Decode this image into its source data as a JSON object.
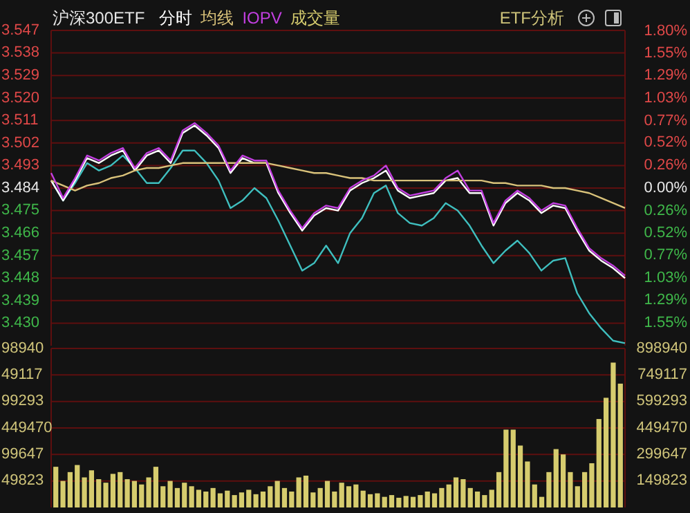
{
  "chart_data": [
    {
      "type": "line",
      "title": "沪深300ETF",
      "annotations": [
        "ETF分析"
      ],
      "categories": [
        null,
        null,
        null,
        null,
        null,
        null,
        null,
        null,
        null,
        null,
        null,
        null,
        null,
        null,
        null,
        null,
        null,
        null,
        null,
        null,
        null,
        null,
        null,
        null,
        null,
        null,
        null,
        null,
        null,
        null,
        null,
        null,
        null,
        null,
        null,
        null,
        null,
        null,
        null,
        null,
        null,
        null,
        null,
        null,
        null,
        null,
        null,
        null,
        null
      ],
      "ylim": [
        3.421,
        3.547
      ],
      "yticks": [
        3.547,
        3.538,
        3.529,
        {
          "value": 3.52,
          "label": "3.520"
        },
        3.511,
        3.502,
        3.493,
        3.484,
        3.475,
        3.466,
        3.457,
        3.448,
        3.439,
        {
          "value": 3.43,
          "label": "3.430"
        }
      ],
      "y2lim": [
        -1.81,
        1.81
      ],
      "y2ticks": [
        {
          "value": 1.8,
          "label": "1.80%"
        },
        {
          "value": 1.55,
          "label": "1.55%"
        },
        {
          "value": 1.29,
          "label": "1.29%"
        },
        {
          "value": 1.03,
          "label": "1.03%"
        },
        {
          "value": 0.77,
          "label": "0.77%"
        },
        {
          "value": 0.52,
          "label": "0.52%"
        },
        {
          "value": 0.26,
          "label": "0.26%"
        },
        {
          "value": 0,
          "label": "0.00%"
        },
        {
          "value": -0.26,
          "label": "0.26%"
        },
        {
          "value": -0.52,
          "label": "0.52%"
        },
        {
          "value": -0.77,
          "label": "0.77%"
        },
        {
          "value": -1.03,
          "label": "1.03%"
        },
        {
          "value": -1.29,
          "label": "1.29%"
        },
        {
          "value": -1.55,
          "label": "1.55%"
        }
      ],
      "grid": "y",
      "series": [
        {
          "color": "#3fbfbf",
          "values": [
            3.487,
            3.479,
            3.486,
            3.494,
            3.491,
            3.493,
            3.497,
            3.492,
            3.486,
            3.486,
            3.492,
            3.499,
            3.499,
            3.494,
            3.487,
            3.476,
            3.479,
            3.484,
            3.48,
            3.471,
            3.461,
            3.451,
            3.454,
            3.461,
            3.454,
            3.466,
            3.472,
            3.482,
            3.485,
            3.474,
            3.47,
            3.469,
            3.472,
            3.478,
            3.475,
            3.469,
            3.461,
            3.454,
            3.459,
            3.463,
            3.458,
            3.451,
            3.455,
            3.456,
            3.442,
            3.434,
            3.428,
            3.423,
            3.422
          ]
        },
        {
          "name": "分时",
          "color": "#ffffff",
          "values": [
            3.487,
            3.479,
            3.487,
            3.496,
            3.494,
            3.497,
            3.499,
            3.491,
            3.497,
            3.499,
            3.494,
            3.506,
            3.509,
            3.505,
            3.5,
            3.49,
            3.496,
            3.494,
            3.494,
            3.482,
            3.474,
            3.467,
            3.473,
            3.476,
            3.475,
            3.483,
            3.486,
            3.488,
            3.491,
            3.483,
            3.48,
            3.481,
            3.482,
            3.487,
            3.488,
            3.482,
            3.482,
            3.469,
            3.478,
            3.482,
            3.479,
            3.474,
            3.477,
            3.476,
            3.467,
            3.459,
            3.455,
            3.452,
            3.448
          ]
        },
        {
          "name": "均线",
          "color": "#d9c27a",
          "values": [
            3.487,
            3.485,
            3.483,
            3.485,
            3.486,
            3.488,
            3.489,
            3.491,
            3.492,
            3.492,
            3.493,
            3.494,
            3.494,
            3.494,
            3.494,
            3.494,
            3.494,
            3.494,
            3.494,
            3.493,
            3.492,
            3.491,
            3.49,
            3.49,
            3.489,
            3.488,
            3.488,
            3.487,
            3.487,
            3.487,
            3.487,
            3.487,
            3.487,
            3.487,
            3.487,
            3.487,
            3.487,
            3.486,
            3.486,
            3.485,
            3.485,
            3.485,
            3.484,
            3.484,
            3.483,
            3.482,
            3.48,
            3.478,
            3.476
          ]
        },
        {
          "name": "IOPV",
          "color": "#c23fe0",
          "values": [
            3.49,
            3.48,
            3.488,
            3.497,
            3.495,
            3.498,
            3.5,
            3.492,
            3.498,
            3.5,
            3.495,
            3.507,
            3.51,
            3.506,
            3.501,
            3.491,
            3.497,
            3.495,
            3.495,
            3.483,
            3.475,
            3.468,
            3.474,
            3.477,
            3.476,
            3.484,
            3.487,
            3.489,
            3.493,
            3.484,
            3.481,
            3.482,
            3.483,
            3.488,
            3.491,
            3.483,
            3.483,
            3.47,
            3.479,
            3.483,
            3.48,
            3.475,
            3.478,
            3.477,
            3.468,
            3.46,
            3.456,
            3.453,
            3.449
          ]
        }
      ]
    },
    {
      "type": "bar",
      "grid": "y",
      "annotations": [
        "98940",
        "49117",
        "99293",
        "449470",
        "99647",
        "49823"
      ],
      "categories": [
        null,
        null,
        null,
        null,
        null,
        null,
        null,
        null,
        null,
        null,
        null,
        null,
        null,
        null,
        null,
        null,
        null,
        null,
        null,
        null,
        null,
        null,
        null,
        null,
        null,
        null,
        null,
        null,
        null,
        null,
        null,
        null,
        null,
        null,
        null,
        null,
        null,
        null,
        null,
        null,
        null,
        null,
        null,
        null,
        null,
        null,
        null,
        null,
        null,
        null,
        null,
        null,
        null,
        null,
        null,
        null,
        null,
        null,
        null,
        null,
        null,
        null,
        null,
        null,
        null,
        null,
        null,
        null,
        null,
        null,
        null,
        null,
        null,
        null,
        null,
        null,
        null,
        null,
        null,
        null
      ],
      "ylim": [
        0,
        898940
      ],
      "yticks": [
        898940,
        749117,
        599293,
        449470,
        299647,
        149823
      ],
      "series": [
        {
          "name": "成交量",
          "color": "#d6cc6e",
          "values": [
            230000,
            150000,
            200000,
            240000,
            170000,
            210000,
            160000,
            140000,
            190000,
            200000,
            160000,
            150000,
            130000,
            170000,
            230000,
            120000,
            150000,
            110000,
            140000,
            120000,
            100000,
            90000,
            110000,
            80000,
            95000,
            70000,
            85000,
            100000,
            75000,
            90000,
            120000,
            150000,
            110000,
            90000,
            170000,
            180000,
            85000,
            110000,
            150000,
            90000,
            140000,
            120000,
            130000,
            95000,
            75000,
            80000,
            60000,
            70000,
            55000,
            65000,
            60000,
            70000,
            90000,
            80000,
            110000,
            130000,
            170000,
            160000,
            110000,
            90000,
            70000,
            100000,
            200000,
            440000,
            440000,
            350000,
            260000,
            130000,
            60000,
            200000,
            330000,
            300000,
            200000,
            120000,
            200000,
            250000,
            500000,
            620000,
            819000,
            700000
          ]
        }
      ]
    }
  ]
}
